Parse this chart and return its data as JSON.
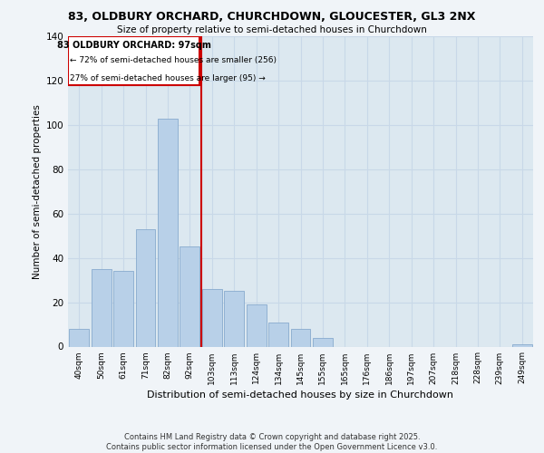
{
  "title1": "83, OLDBURY ORCHARD, CHURCHDOWN, GLOUCESTER, GL3 2NX",
  "title2": "Size of property relative to semi-detached houses in Churchdown",
  "xlabel": "Distribution of semi-detached houses by size in Churchdown",
  "ylabel": "Number of semi-detached properties",
  "categories": [
    "40sqm",
    "50sqm",
    "61sqm",
    "71sqm",
    "82sqm",
    "92sqm",
    "103sqm",
    "113sqm",
    "124sqm",
    "134sqm",
    "145sqm",
    "155sqm",
    "165sqm",
    "176sqm",
    "186sqm",
    "197sqm",
    "207sqm",
    "218sqm",
    "228sqm",
    "239sqm",
    "249sqm"
  ],
  "values": [
    8,
    35,
    34,
    53,
    103,
    45,
    26,
    25,
    19,
    11,
    8,
    4,
    0,
    0,
    0,
    0,
    0,
    0,
    0,
    0,
    1
  ],
  "bar_color": "#b8d0e8",
  "bar_edge_color": "#88aace",
  "property_label": "83 OLDBURY ORCHARD: 97sqm",
  "annotation_line1": "← 72% of semi-detached houses are smaller (256)",
  "annotation_line2": "27% of semi-detached houses are larger (95) →",
  "vline_color": "#cc0000",
  "vline_x_index": 5.5,
  "annotation_box_color": "#cc0000",
  "ylim": [
    0,
    140
  ],
  "yticks": [
    0,
    20,
    40,
    60,
    80,
    100,
    120,
    140
  ],
  "grid_color": "#c8d8e8",
  "plot_bg_color": "#dce8f0",
  "fig_bg_color": "#f0f4f8",
  "footer": "Contains HM Land Registry data © Crown copyright and database right 2025.\nContains public sector information licensed under the Open Government Licence v3.0."
}
